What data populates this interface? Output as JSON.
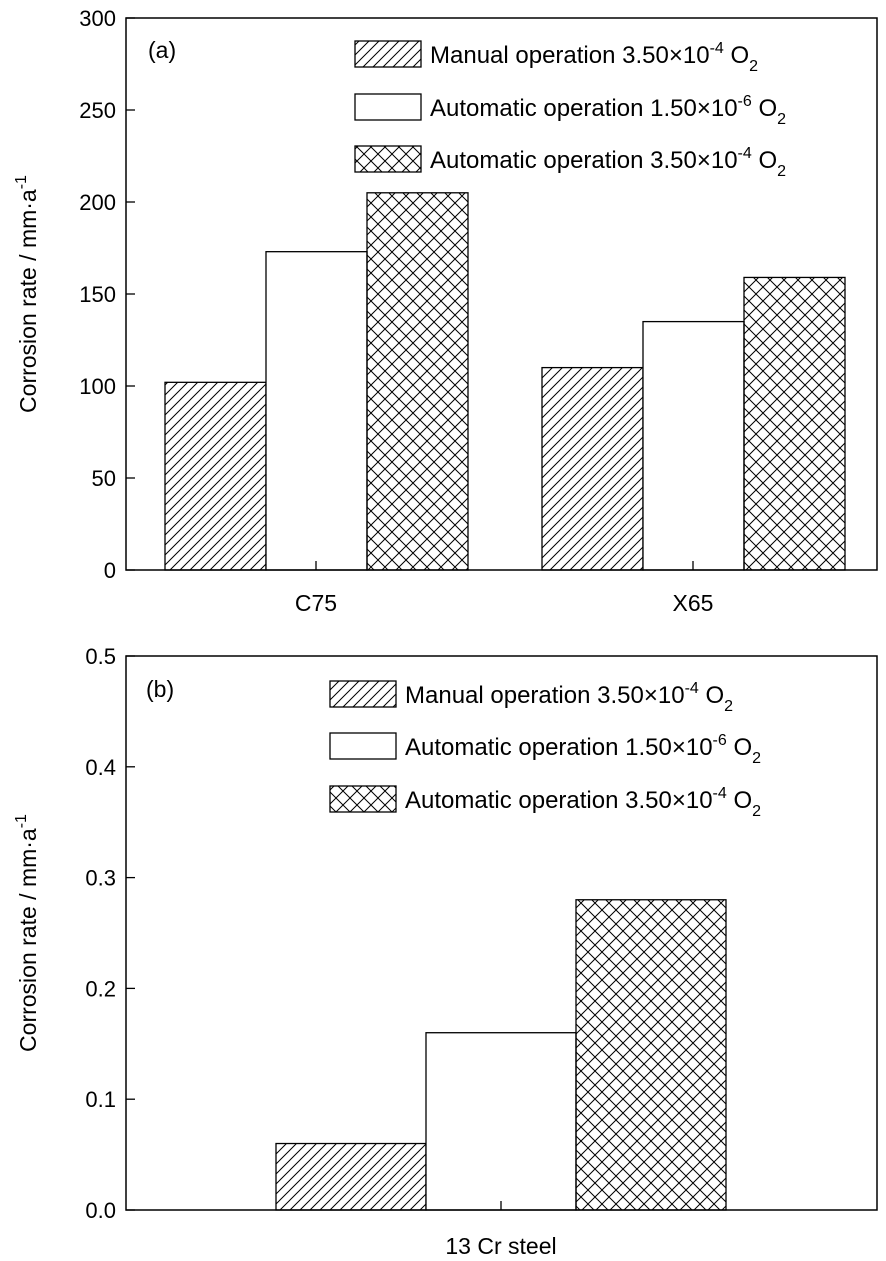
{
  "chart_data": [
    {
      "type": "bar",
      "panel_label": "(a)",
      "categories": [
        "C75",
        "X65"
      ],
      "ylabel": "Corrosion rate / mm·a",
      "ylabel_superscript": "-1",
      "ylim": [
        0,
        300
      ],
      "yticks": [
        "0",
        "50",
        "100",
        "150",
        "200",
        "250",
        "300"
      ],
      "legend_position": "top-right",
      "series": [
        {
          "name": "Manual operation 3.50×10",
          "name_superscript": "-4",
          "name_tail": " O",
          "name_subscript": "2",
          "pattern": "diagonal-hatch",
          "values": [
            102,
            110
          ]
        },
        {
          "name": "Automatic operation 1.50×10",
          "name_superscript": "-6",
          "name_tail": " O",
          "name_subscript": "2",
          "pattern": "none",
          "values": [
            173,
            135
          ]
        },
        {
          "name": "Automatic operation 3.50×10",
          "name_superscript": "-4",
          "name_tail": " O",
          "name_subscript": "2",
          "pattern": "cross-hatch",
          "values": [
            205,
            159
          ]
        }
      ]
    },
    {
      "type": "bar",
      "panel_label": "(b)",
      "categories": [
        "13 Cr steel"
      ],
      "ylabel": "Corrosion rate / mm·a",
      "ylabel_superscript": "-1",
      "ylim": [
        0,
        0.5
      ],
      "yticks": [
        "0.0",
        "0.1",
        "0.2",
        "0.3",
        "0.4",
        "0.5"
      ],
      "legend_position": "top-right",
      "series": [
        {
          "name": "Manual operation 3.50×10",
          "name_superscript": "-4",
          "name_tail": " O",
          "name_subscript": "2",
          "pattern": "diagonal-hatch",
          "values": [
            0.06
          ]
        },
        {
          "name": "Automatic operation 1.50×10",
          "name_superscript": "-6",
          "name_tail": " O",
          "name_subscript": "2",
          "pattern": "none",
          "values": [
            0.16
          ]
        },
        {
          "name": "Automatic operation 3.50×10",
          "name_superscript": "-4",
          "name_tail": " O",
          "name_subscript": "2",
          "pattern": "cross-hatch",
          "values": [
            0.28
          ]
        }
      ]
    }
  ]
}
